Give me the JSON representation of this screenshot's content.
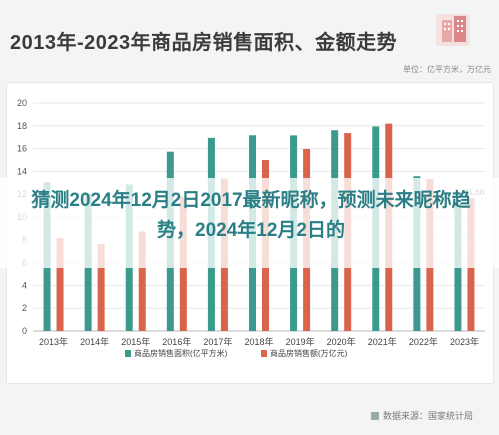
{
  "header": {
    "title": "2013年-2023年商品房销售面积、金额走势",
    "unit": "单位：亿平方米，万亿元"
  },
  "overlay": {
    "headline": "猜测2024年12月2日2017最新昵称，预测未来昵称趋势，2024年12月2日的"
  },
  "source": {
    "label": "数据来源：国家统计局"
  },
  "colors": {
    "area": "#3a9a8e",
    "amount": "#d9644b",
    "accent": "#2a7f86"
  },
  "icons": {
    "logo": "building-icon",
    "source": "chart-icon"
  },
  "chart_data": {
    "type": "bar",
    "categories": [
      "2013年",
      "2014年",
      "2015年",
      "2016年",
      "2017年",
      "2018年",
      "2019年",
      "2020年",
      "2021年",
      "2022年",
      "2023年"
    ],
    "series": [
      {
        "name": "商品房销售面积(亿平方米)",
        "values": [
          13.06,
          12.06,
          12.85,
          15.73,
          16.94,
          17.17,
          17.16,
          17.61,
          17.94,
          13.58,
          11.17
        ]
      },
      {
        "name": "商品房销售额(万亿元)",
        "values": [
          8.14,
          7.63,
          8.73,
          11.76,
          13.37,
          15.0,
          15.97,
          17.36,
          18.19,
          13.33,
          11.66
        ]
      }
    ],
    "data_labels": {
      "2023年": "11.66"
    },
    "ylim": [
      0,
      20
    ],
    "yticks": [
      "0",
      "2",
      "4",
      "6",
      "8",
      "10",
      "12",
      "14",
      "16",
      "18",
      "20"
    ],
    "grid": true,
    "legend_position": "bottom"
  }
}
